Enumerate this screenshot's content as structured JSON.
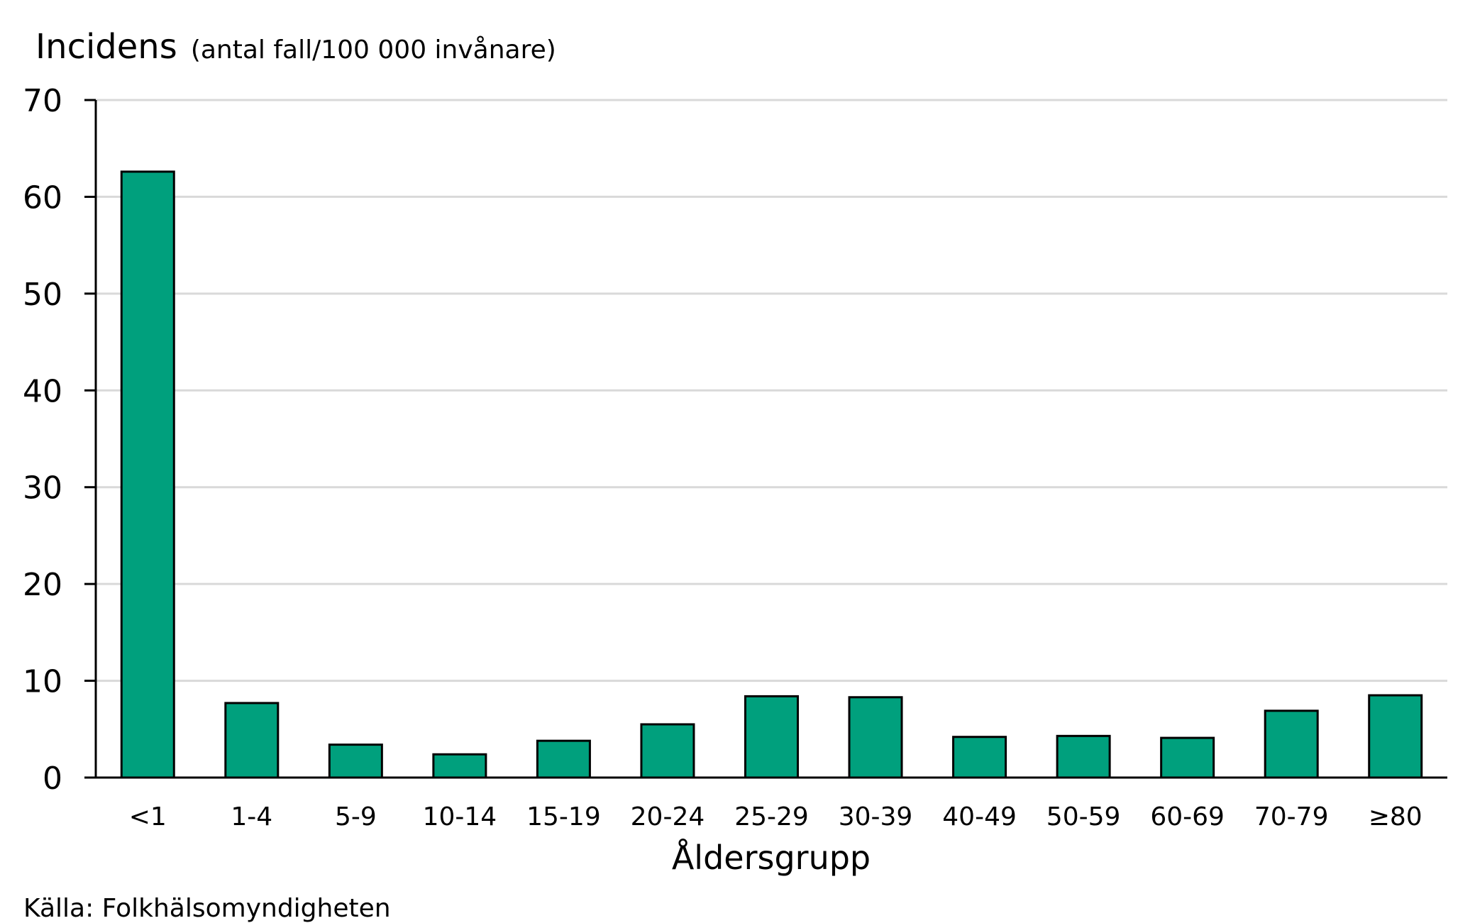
{
  "chart_data": {
    "type": "bar",
    "ylabel": "Incidens",
    "ylabel_unit": "(antal fall/100 000 invånare)",
    "xlabel": "Åldersgrupp",
    "categories": [
      "<1",
      "1-4",
      "5-9",
      "10-14",
      "15-19",
      "20-24",
      "25-29",
      "30-39",
      "40-49",
      "50-59",
      "60-69",
      "70-79",
      "≥80"
    ],
    "values": [
      62.6,
      7.7,
      3.4,
      2.4,
      3.8,
      5.5,
      8.4,
      8.3,
      4.2,
      4.3,
      4.1,
      6.9,
      8.5
    ],
    "ylim": [
      0,
      70
    ],
    "yticks": [
      0,
      10,
      20,
      30,
      40,
      50,
      60,
      70
    ],
    "grid": true,
    "bar_color": "#00a07d",
    "source": "Källa: Folkhälsomyndigheten"
  }
}
